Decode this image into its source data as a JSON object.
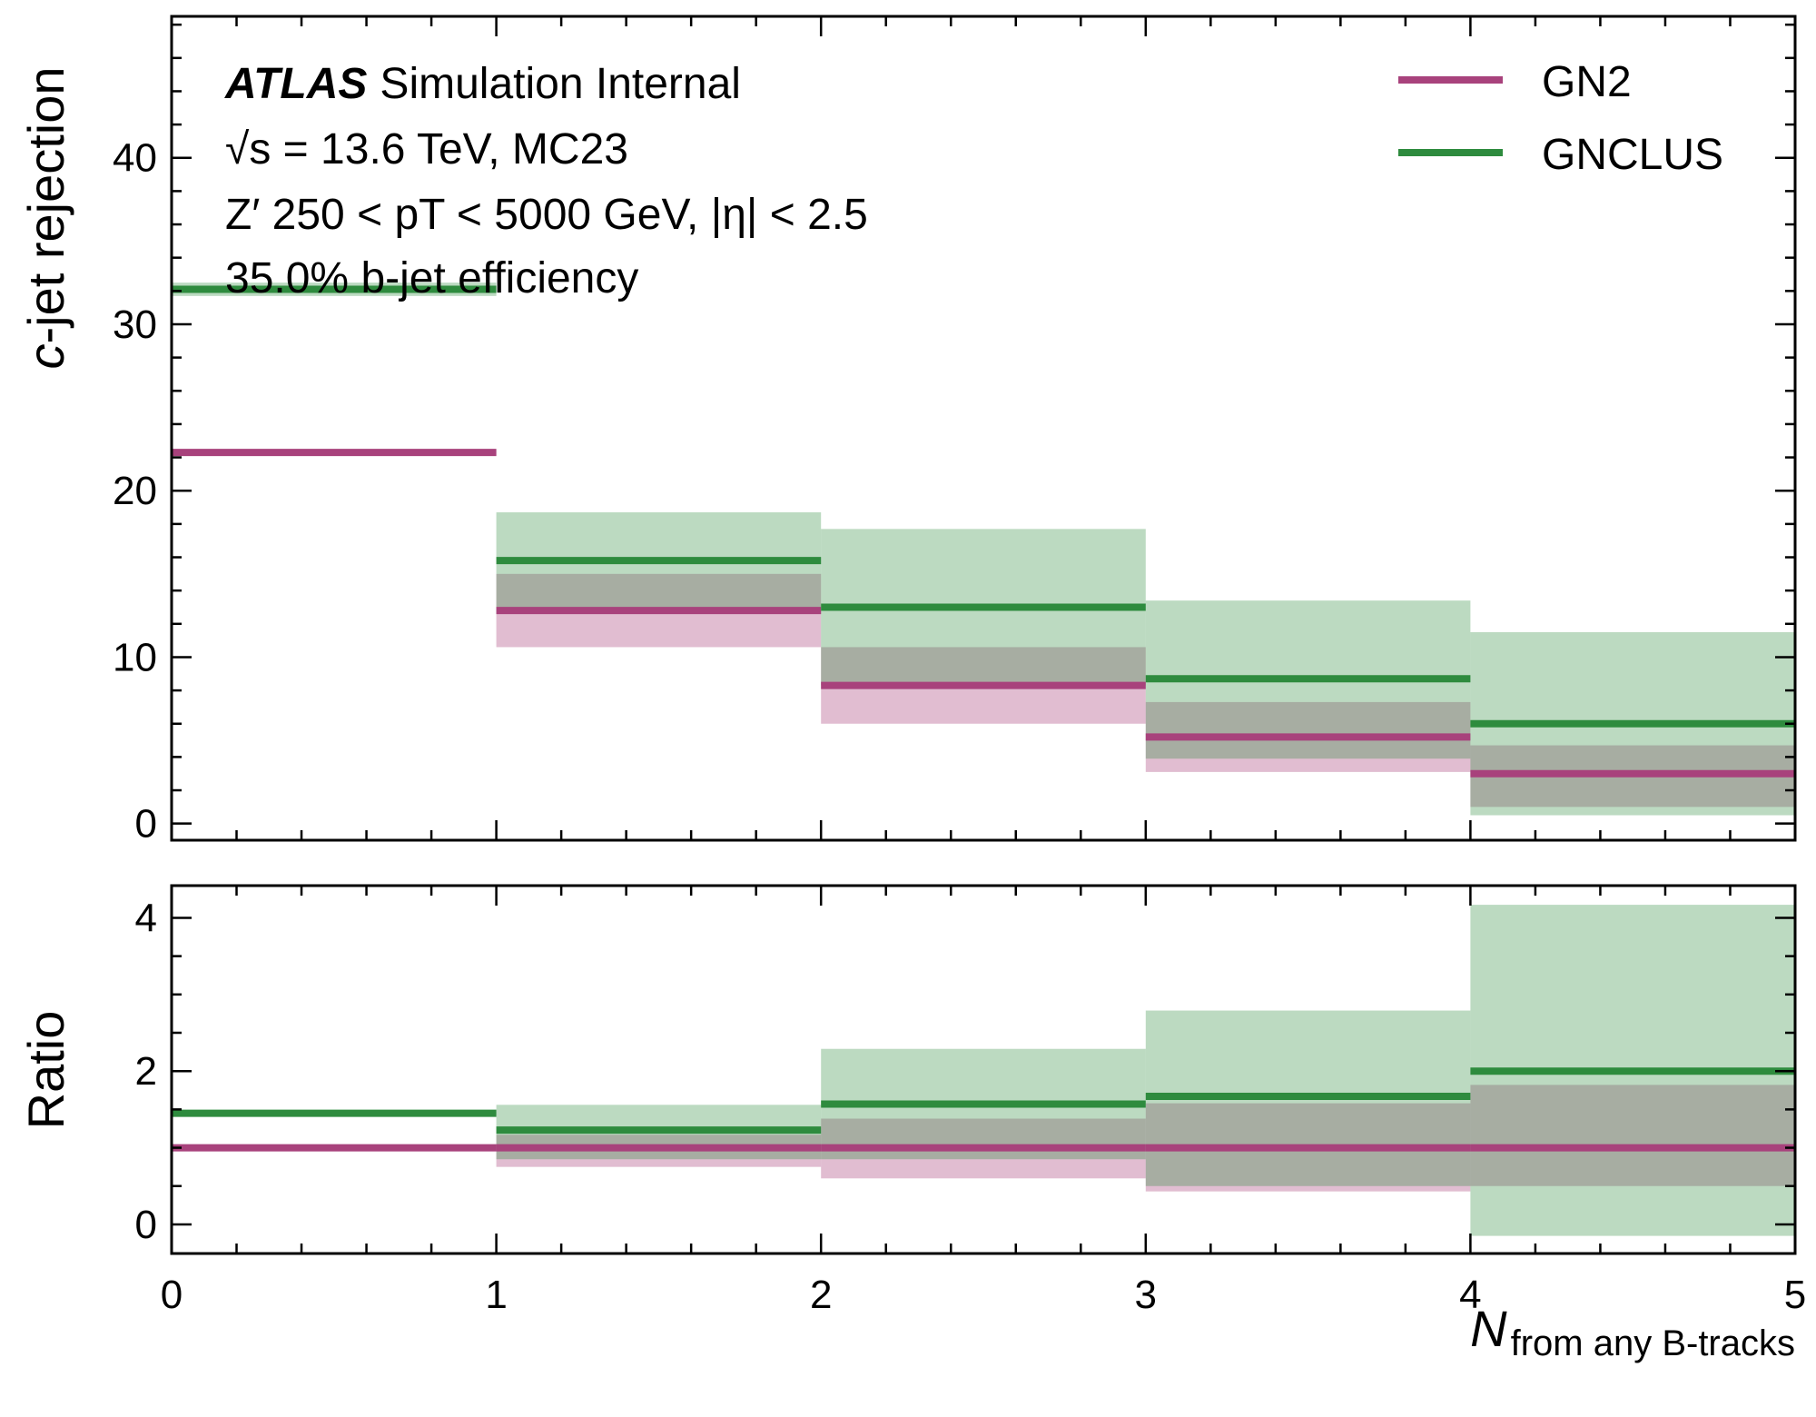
{
  "chart_data": {
    "type": "step",
    "x_edges": [
      0,
      1,
      2,
      3,
      4,
      5
    ],
    "xlim": [
      0,
      5
    ],
    "xticks": [
      "0",
      "1",
      "2",
      "3",
      "4",
      "5"
    ],
    "xlabel_main": "N",
    "xlabel_sub": "from any B-tracks",
    "atlas_label": {
      "atlas": "ATLAS",
      "rest": "Simulation Internal",
      "line2": "√s = 13.6 TeV, MC23",
      "line3": "Z′ 250 < pT < 5000 GeV, |η| < 2.5",
      "line4": "35.0% b-jet efficiency"
    },
    "legend": {
      "placement": "top-right"
    },
    "colors": {
      "GN2": "#a8427c",
      "GNCLUS": "#2e8b3e"
    },
    "top": {
      "ylabel": "c-jet rejection",
      "ylim": [
        -1,
        48.5
      ],
      "yticks": [
        "0",
        "10",
        "20",
        "30",
        "40"
      ],
      "series": [
        {
          "name": "GN2",
          "values": [
            22.3,
            12.8,
            8.3,
            5.2,
            3.0
          ],
          "err_low": [
            22.15,
            10.6,
            6.0,
            3.1,
            1.0
          ],
          "err_high": [
            22.45,
            15.0,
            10.6,
            7.3,
            4.7
          ]
        },
        {
          "name": "GNCLUS",
          "values": [
            32.1,
            15.8,
            13.0,
            8.7,
            6.0
          ],
          "err_low": [
            31.7,
            12.6,
            8.3,
            3.9,
            0.5
          ],
          "err_high": [
            32.5,
            18.7,
            17.7,
            13.4,
            11.5
          ]
        }
      ]
    },
    "bottom": {
      "ylabel": "Ratio",
      "ylim": [
        -0.38,
        4.42
      ],
      "yticks": [
        "0",
        "2",
        "4"
      ],
      "series": [
        {
          "name": "GN2",
          "values": [
            1.0,
            1.0,
            1.0,
            1.0,
            1.0
          ],
          "err_low": [
            0.99,
            0.75,
            0.6,
            0.43,
            0.5
          ],
          "err_high": [
            1.01,
            1.17,
            1.38,
            1.58,
            1.82
          ]
        },
        {
          "name": "GNCLUS",
          "values": [
            1.45,
            1.23,
            1.57,
            1.67,
            2.0
          ],
          "err_low": [
            1.43,
            0.85,
            0.85,
            0.5,
            -0.15
          ],
          "err_high": [
            1.47,
            1.56,
            2.29,
            2.79,
            4.17
          ]
        }
      ]
    }
  }
}
